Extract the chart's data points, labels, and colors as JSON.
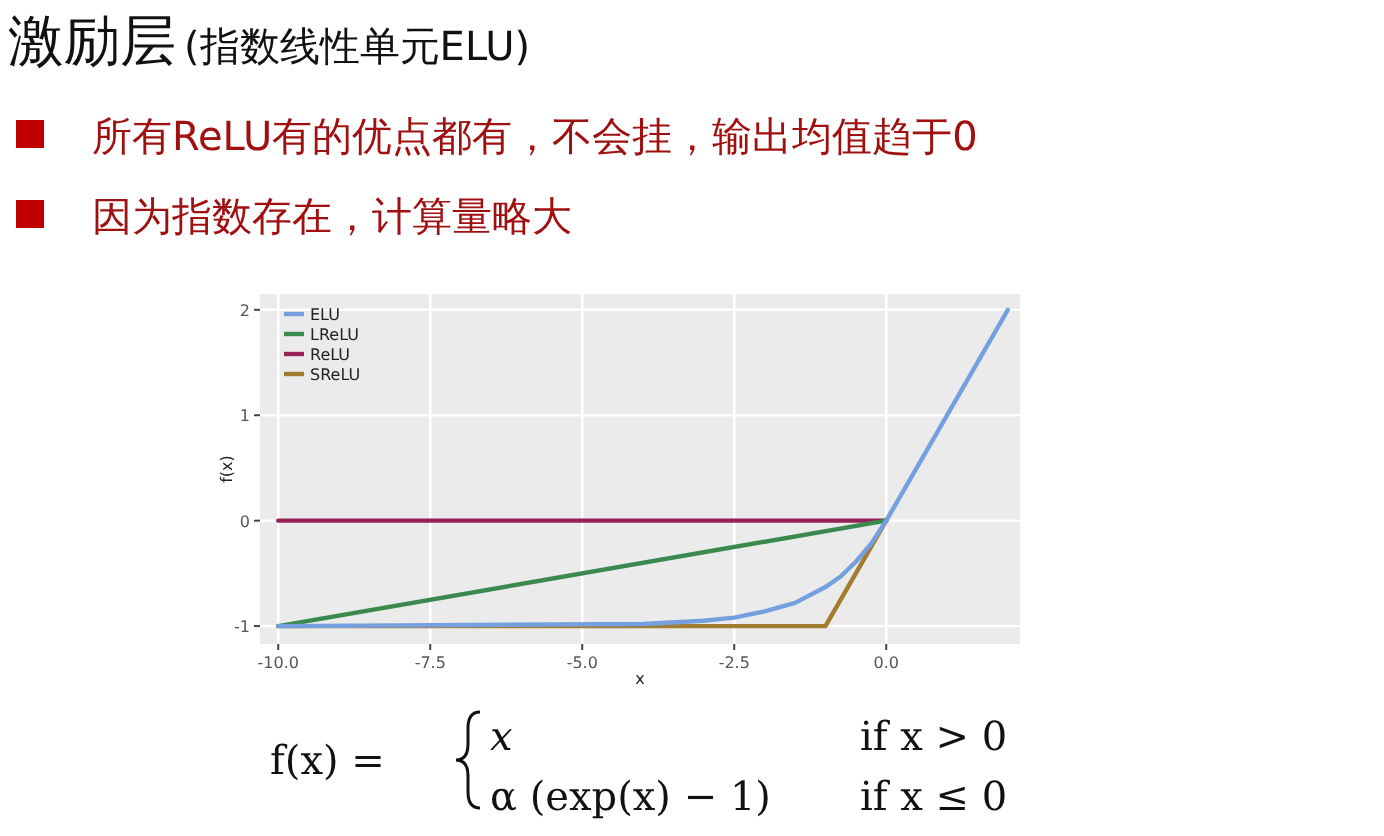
{
  "chart_data": {
    "type": "line",
    "title": "激励层",
    "subtitle": "(指数线性单元ELU)",
    "annotations": [
      "所有ReLU有的优点都有，不会挂，输出均值趋于0",
      "因为指数存在，计算量略大",
      "f(x) =",
      "x",
      "if x > 0",
      "α (exp(x) − 1)",
      "if x ≤ 0"
    ],
    "xlabel": "x",
    "ylabel": "f(x)",
    "xlim": [
      -10.3,
      2.2
    ],
    "xticks": [
      {
        "value": -10,
        "label": "-10.0"
      },
      {
        "value": -7.5,
        "label": "-7.5"
      },
      {
        "value": -5,
        "label": "-5.0"
      },
      {
        "value": -2.5,
        "label": "-2.5"
      },
      {
        "value": 0,
        "label": "0.0"
      }
    ],
    "ylim": [
      -1.17,
      2.15
    ],
    "yticks": [
      -1,
      0,
      1,
      2
    ],
    "grid": true,
    "legend": "top left",
    "line_style": "solid",
    "series": [
      {
        "name": "ELU",
        "color": "#74a0e0",
        "x": [
          -10,
          -4,
          -3,
          -2.5,
          -2,
          -1.5,
          -1,
          -0.75,
          -0.5,
          -0.25,
          0,
          2
        ],
        "values": [
          -1,
          -0.98,
          -0.95,
          -0.92,
          -0.86,
          -0.78,
          -0.63,
          -0.53,
          -0.39,
          -0.22,
          0,
          2
        ]
      },
      {
        "name": "LReLU",
        "color": "#3a8a50",
        "x": [
          -10,
          0
        ],
        "values": [
          -1,
          0
        ]
      },
      {
        "name": "ReLU",
        "color": "#962058",
        "x": [
          -10,
          0
        ],
        "values": [
          0,
          0
        ]
      },
      {
        "name": "SReLU",
        "color": "#a47c30",
        "x": [
          -10,
          -1,
          0
        ],
        "values": [
          -1,
          -1,
          0
        ]
      }
    ]
  }
}
